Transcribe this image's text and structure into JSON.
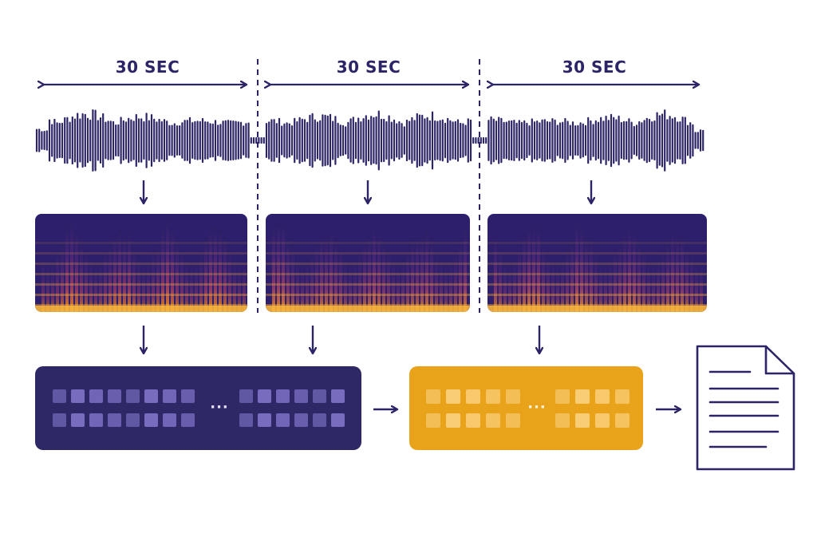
{
  "segments": [
    {
      "label": "30 SEC"
    },
    {
      "label": "30 SEC"
    },
    {
      "label": "30 SEC"
    }
  ],
  "encoder": {
    "ellipsis": "···"
  },
  "decoder": {
    "ellipsis": "···"
  },
  "output": {
    "icon": "document-icon"
  },
  "colors": {
    "ink": "#2b2466",
    "encoder_fill": "#2f2867",
    "decoder_fill": "#e9a31a",
    "spectrogram_bg": "#2d1f6b",
    "spectrogram_hot": "#f2b33a"
  }
}
